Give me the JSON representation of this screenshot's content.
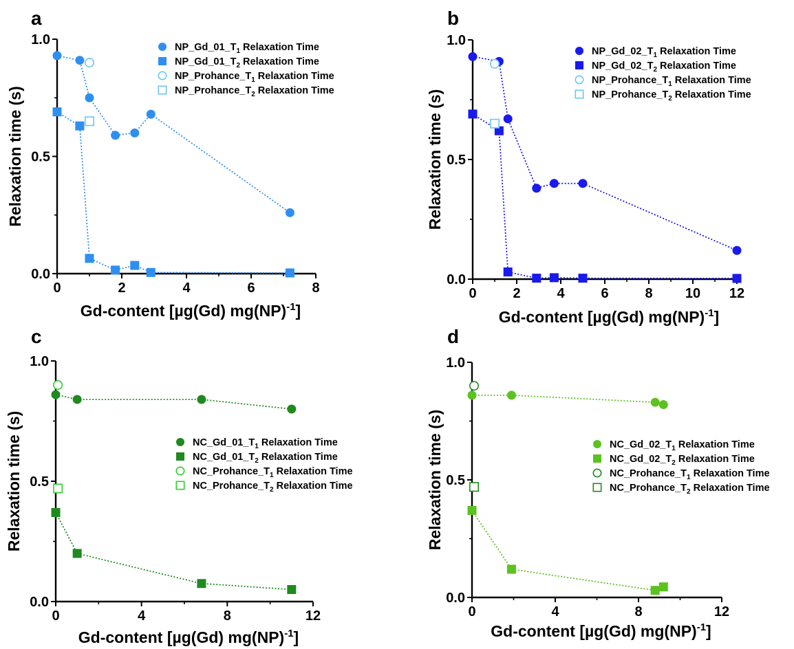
{
  "chart_data": [
    {
      "panel": "a",
      "type": "scatter",
      "xlabel": "Gd-content [µg(Gd) mg(NP)",
      "xlabel_sup": "-1",
      "xlabel_end": "]",
      "ylabel": "Relaxation time (s)",
      "xlim": [
        0,
        8
      ],
      "ylim": [
        0,
        1.0
      ],
      "xticks": [
        0,
        2,
        4,
        6,
        8
      ],
      "yticks": [
        0.0,
        0.5,
        1.0
      ],
      "ytick_labels": [
        "0.0",
        "0.5",
        "1.0"
      ],
      "legend_position": "top-right",
      "series": [
        {
          "name": "NP_Gd_01_T1 Relaxation Time",
          "legend": {
            "pre": "NP_Gd_01_T",
            "sub": "1",
            "post": " Relaxation Time"
          },
          "marker": "circle",
          "fill": true,
          "color": "#2e8ff0",
          "connected": true,
          "x": [
            0,
            0.7,
            1.0,
            1.8,
            2.4,
            2.9,
            7.2
          ],
          "y": [
            0.93,
            0.91,
            0.75,
            0.59,
            0.6,
            0.68,
            0.26
          ]
        },
        {
          "name": "NP_Gd_01_T2 Relaxation Time",
          "legend": {
            "pre": "NP_Gd_01_T",
            "sub": "2",
            "post": " Relaxation Time"
          },
          "marker": "square",
          "fill": true,
          "color": "#2e8ff0",
          "connected": true,
          "x": [
            0,
            0.7,
            1.0,
            1.8,
            2.4,
            2.9,
            7.2
          ],
          "y": [
            0.69,
            0.63,
            0.065,
            0.015,
            0.035,
            0.005,
            0.003
          ]
        },
        {
          "name": "NP_Prohance_T1 Relaxation Time",
          "legend": {
            "pre": "NP_Prohance_T",
            "sub": "1",
            "post": " Relaxation Time"
          },
          "marker": "circle",
          "fill": false,
          "color": "#6cc6f0",
          "connected": false,
          "x": [
            1.0
          ],
          "y": [
            0.9
          ]
        },
        {
          "name": "NP_Prohance_T2 Relaxation Time",
          "legend": {
            "pre": "NP_Prohance_T",
            "sub": "2",
            "post": " Relaxation Time"
          },
          "marker": "square",
          "fill": false,
          "color": "#6cc6f0",
          "connected": false,
          "x": [
            1.0
          ],
          "y": [
            0.65
          ]
        }
      ]
    },
    {
      "panel": "b",
      "type": "scatter",
      "xlabel": "Gd-content [µg(Gd) mg(NP)",
      "xlabel_sup": "-1",
      "xlabel_end": "]",
      "ylabel": "Relaxation time (s)",
      "xlim": [
        0,
        12
      ],
      "ylim": [
        0,
        1.0
      ],
      "xticks": [
        0,
        2,
        4,
        6,
        8,
        10,
        12
      ],
      "yticks": [
        0.0,
        0.5,
        1.0
      ],
      "ytick_labels": [
        "0.0",
        "0.5",
        "1.0"
      ],
      "legend_position": "top-right",
      "series": [
        {
          "name": "NP_Gd_02_T1 Relaxation Time",
          "legend": {
            "pre": "NP_Gd_02_T",
            "sub": "1",
            "post": " Relaxation Time"
          },
          "marker": "circle",
          "fill": true,
          "color": "#1a1aee",
          "connected": true,
          "x": [
            0,
            1.2,
            1.6,
            2.9,
            3.7,
            5.0,
            12.0
          ],
          "y": [
            0.93,
            0.91,
            0.67,
            0.38,
            0.4,
            0.4,
            0.12
          ]
        },
        {
          "name": "NP_Gd_02_T2 Relaxation Time",
          "legend": {
            "pre": "NP_Gd_02_T",
            "sub": "2",
            "post": " Relaxation Time"
          },
          "marker": "square",
          "fill": true,
          "color": "#1a1aee",
          "connected": true,
          "x": [
            0,
            1.2,
            1.6,
            2.9,
            3.7,
            5.0,
            12.0
          ],
          "y": [
            0.69,
            0.62,
            0.03,
            0.004,
            0.006,
            0.004,
            0.003
          ]
        },
        {
          "name": "NP_Prohance_T1 Relaxation Time",
          "legend": {
            "pre": "NP_Prohance_T",
            "sub": "1",
            "post": " Relaxation Time"
          },
          "marker": "circle",
          "fill": false,
          "color": "#6cc6f0",
          "connected": false,
          "x": [
            1.0
          ],
          "y": [
            0.9
          ]
        },
        {
          "name": "NP_Prohance_T2 Relaxation Time",
          "legend": {
            "pre": "NP_Prohance_T",
            "sub": "2",
            "post": " Relaxation Time"
          },
          "marker": "square",
          "fill": false,
          "color": "#6cc6f0",
          "connected": false,
          "x": [
            1.0
          ],
          "y": [
            0.65
          ]
        }
      ]
    },
    {
      "panel": "c",
      "type": "scatter",
      "xlabel": "Gd-content [µg(Gd) mg(NP)",
      "xlabel_sup": "-1",
      "xlabel_end": "]",
      "ylabel": "Relaxation time (s)",
      "xlim": [
        0,
        12
      ],
      "ylim": [
        0,
        1.0
      ],
      "xticks": [
        0,
        4,
        8,
        12
      ],
      "yticks": [
        0.0,
        0.5,
        1.0
      ],
      "ytick_labels": [
        "0.0",
        "0.5",
        "1.0"
      ],
      "legend_position": "right",
      "series": [
        {
          "name": "NC_Gd_01_T1 Relaxation Time",
          "legend": {
            "pre": "NC_Gd_01_T",
            "sub": "1",
            "post": " Relaxation Time"
          },
          "marker": "circle",
          "fill": true,
          "color": "#1f8a1f",
          "connected": true,
          "x": [
            0,
            1.0,
            6.8,
            11.0
          ],
          "y": [
            0.86,
            0.84,
            0.84,
            0.8
          ]
        },
        {
          "name": "NC_Gd_01_T2 Relaxation Time",
          "legend": {
            "pre": "NC_Gd_01_T",
            "sub": "2",
            "post": " Relaxation Time"
          },
          "marker": "square",
          "fill": true,
          "color": "#1f8a1f",
          "connected": true,
          "x": [
            0,
            1.0,
            6.8,
            11.0
          ],
          "y": [
            0.37,
            0.2,
            0.075,
            0.05
          ]
        },
        {
          "name": "NC_Prohance_T1 Relaxation Time",
          "legend": {
            "pre": "NC_Prohance_T",
            "sub": "1",
            "post": " Relaxation Time"
          },
          "marker": "circle",
          "fill": false,
          "color": "#2ecc2e",
          "connected": false,
          "x": [
            0.1
          ],
          "y": [
            0.9
          ]
        },
        {
          "name": "NC_Prohance_T2 Relaxation Time",
          "legend": {
            "pre": "NC_Prohance_T",
            "sub": "2",
            "post": " Relaxation Time"
          },
          "marker": "square",
          "fill": false,
          "color": "#2ecc2e",
          "connected": false,
          "x": [
            0.1
          ],
          "y": [
            0.47
          ]
        }
      ]
    },
    {
      "panel": "d",
      "type": "scatter",
      "xlabel": "Gd-content [µg(Gd) mg(NP)",
      "xlabel_sup": "-1",
      "xlabel_end": "]",
      "ylabel": "Relaxation time (s)",
      "xlim": [
        0,
        12
      ],
      "ylim": [
        0,
        1.0
      ],
      "xticks": [
        0,
        4,
        8,
        12
      ],
      "yticks": [
        0.0,
        0.5,
        1.0
      ],
      "ytick_labels": [
        "0.0",
        "0.5",
        "1.0"
      ],
      "legend_position": "right",
      "series": [
        {
          "name": "NC_Gd_02_T1 Relaxation Time",
          "legend": {
            "pre": "NC_Gd_02_T",
            "sub": "1",
            "post": " Relaxation Time"
          },
          "marker": "circle",
          "fill": true,
          "color": "#5cc220",
          "connected": true,
          "x": [
            0,
            1.9,
            8.8,
            9.2
          ],
          "y": [
            0.86,
            0.86,
            0.83,
            0.82
          ]
        },
        {
          "name": "NC_Gd_02_T2 Relaxation Time",
          "legend": {
            "pre": "NC_Gd_02_T",
            "sub": "2",
            "post": " Relaxation Time"
          },
          "marker": "square",
          "fill": true,
          "color": "#5cc220",
          "connected": true,
          "x": [
            0,
            1.9,
            8.8,
            9.2
          ],
          "y": [
            0.37,
            0.12,
            0.03,
            0.045
          ]
        },
        {
          "name": "NC_Prohance_T1 Relaxation Time",
          "legend": {
            "pre": "NC_Prohance_T",
            "sub": "1",
            "post": " Relaxation Time"
          },
          "marker": "circle",
          "fill": false,
          "color": "#1f8a1f",
          "connected": false,
          "x": [
            0.1
          ],
          "y": [
            0.9
          ]
        },
        {
          "name": "NC_Prohance_T2 Relaxation Time",
          "legend": {
            "pre": "NC_Prohance_T",
            "sub": "2",
            "post": " Relaxation Time"
          },
          "marker": "square",
          "fill": false,
          "color": "#1f8a1f",
          "connected": false,
          "x": [
            0.1
          ],
          "y": [
            0.47
          ]
        }
      ]
    }
  ]
}
